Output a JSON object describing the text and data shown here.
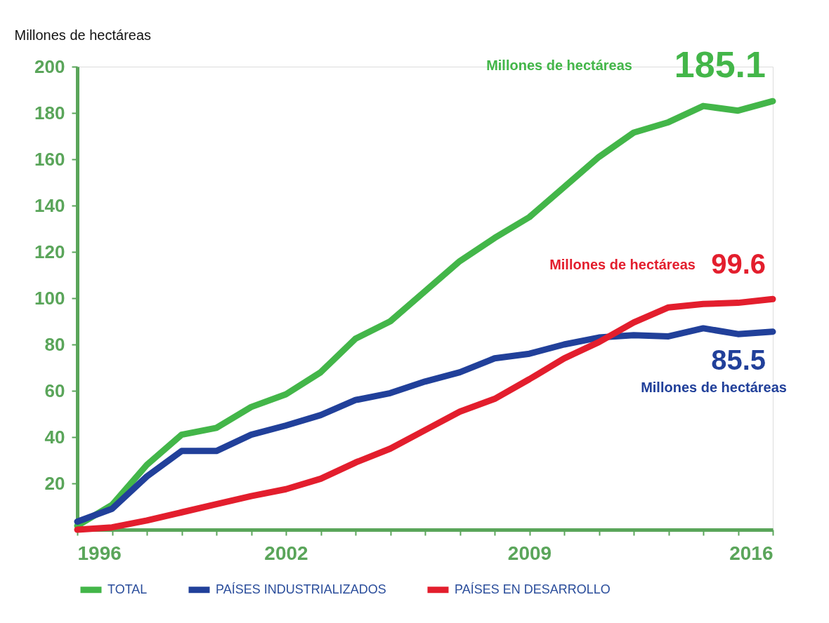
{
  "chart_data": {
    "type": "line",
    "ylabel": "Millones de hectáreas",
    "x": [
      1996,
      1997,
      1998,
      1999,
      2000,
      2001,
      2002,
      2003,
      2004,
      2005,
      2006,
      2007,
      2008,
      2009,
      2010,
      2011,
      2012,
      2013,
      2014,
      2015,
      2016
    ],
    "series": [
      {
        "name": "TOTAL",
        "color": "#43b649",
        "values": [
          1.7,
          10.7,
          28,
          41,
          44,
          53,
          58.5,
          68,
          82.5,
          90,
          103,
          116,
          126,
          135,
          148,
          161,
          171.5,
          176,
          183,
          181,
          185.1
        ],
        "value_labels": [
          null,
          null,
          null,
          null,
          null,
          null,
          null,
          null,
          null,
          null,
          null,
          null,
          null,
          null,
          null,
          null,
          null,
          null,
          null,
          null,
          "185.1"
        ]
      },
      {
        "name": "PAÍSES INDUSTRIALIZADOS",
        "color": "#21409a",
        "values": [
          3.5,
          9,
          23,
          34,
          34,
          41,
          45,
          49.5,
          56,
          59,
          64,
          68,
          74,
          76,
          80,
          83,
          84,
          83.5,
          87,
          84.5,
          85.5
        ],
        "value_labels": [
          null,
          null,
          null,
          null,
          null,
          null,
          null,
          null,
          null,
          null,
          null,
          null,
          null,
          null,
          null,
          null,
          null,
          null,
          null,
          null,
          "85.5"
        ]
      },
      {
        "name": "PAÍSES EN DESARROLLO",
        "color": "#e31e2d",
        "values": [
          0,
          1,
          4,
          7.5,
          11,
          14.5,
          17.5,
          22,
          29,
          35,
          43,
          51,
          56.5,
          65,
          74,
          81,
          89.5,
          96,
          97.5,
          98,
          99.6
        ],
        "value_labels": [
          null,
          null,
          null,
          null,
          null,
          null,
          null,
          null,
          null,
          null,
          null,
          null,
          null,
          null,
          null,
          null,
          null,
          null,
          null,
          null,
          "99.6"
        ]
      }
    ],
    "annotations": [
      "Millones de hectáreas",
      "Millones de hectáreas",
      "Millones de hectáreas"
    ],
    "xlim": [
      1996,
      2016
    ],
    "xticks": [
      1996,
      {
        "value": 1997,
        "label": null
      },
      {
        "value": 1998,
        "label": null
      },
      {
        "value": 1999,
        "label": null
      },
      {
        "value": 2000,
        "label": null
      },
      {
        "value": 2001,
        "label": null
      },
      2002,
      {
        "value": 2003,
        "label": null
      },
      {
        "value": 2004,
        "label": null
      },
      {
        "value": 2005,
        "label": null
      },
      {
        "value": 2006,
        "label": null
      },
      {
        "value": 2007,
        "label": null
      },
      {
        "value": 2008,
        "label": null
      },
      2009,
      {
        "value": 2010,
        "label": null
      },
      {
        "value": 2011,
        "label": null
      },
      {
        "value": 2012,
        "label": null
      },
      {
        "value": 2013,
        "label": null
      },
      {
        "value": 2014,
        "label": null
      },
      {
        "value": 2015,
        "label": null
      },
      2016
    ],
    "ylim": [
      0,
      200
    ],
    "yticks": [
      20,
      40,
      60,
      80,
      100,
      120,
      140,
      160,
      180,
      200
    ],
    "grid": false,
    "legend": "bottom",
    "marker": "none",
    "line_style": "solid"
  }
}
